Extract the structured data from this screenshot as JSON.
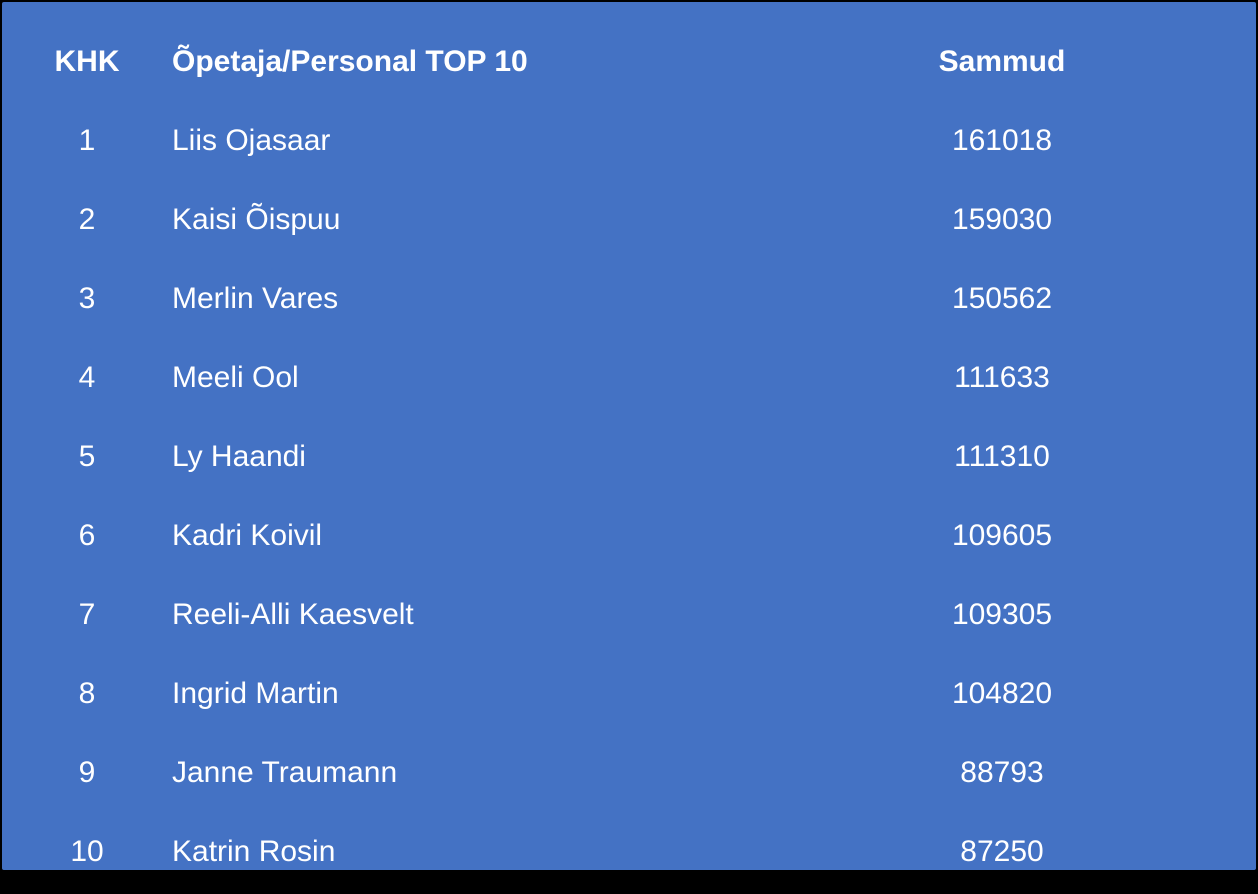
{
  "slide": {
    "background_color": "#4472C4",
    "text_color": "#FFFFFF",
    "border_color": "#000000"
  },
  "table": {
    "headers": {
      "rank": "KHK",
      "name": "Õpetaja/Personal TOP 10",
      "steps": "Sammud"
    },
    "rows": [
      {
        "rank": "1",
        "name": "Liis Ojasaar",
        "steps": "161018"
      },
      {
        "rank": "2",
        "name": "Kaisi Õispuu",
        "steps": "159030"
      },
      {
        "rank": "3",
        "name": "Merlin Vares",
        "steps": "150562"
      },
      {
        "rank": "4",
        "name": "Meeli Ool",
        "steps": "111633"
      },
      {
        "rank": "5",
        "name": "Ly Haandi",
        "steps": "111310"
      },
      {
        "rank": "6",
        "name": "Kadri Koivil",
        "steps": "109605"
      },
      {
        "rank": "7",
        "name": "Reeli-Alli Kaesvelt",
        "steps": "109305"
      },
      {
        "rank": "8",
        "name": "Ingrid Martin",
        "steps": "104820"
      },
      {
        "rank": "9",
        "name": "Janne Traumann",
        "steps": "88793"
      },
      {
        "rank": "10",
        "name": "Katrin Rosin",
        "steps": "87250"
      }
    ]
  }
}
